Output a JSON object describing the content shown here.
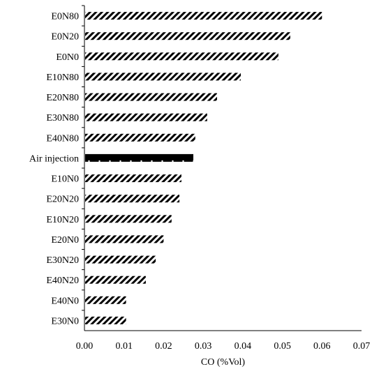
{
  "chart_data": {
    "type": "bar",
    "orientation": "horizontal",
    "title": "",
    "xlabel": "CO (%Vol)",
    "ylabel": "",
    "xlim": [
      0,
      0.07
    ],
    "xticks": [
      "0.00",
      "0.01",
      "0.02",
      "0.03",
      "0.04",
      "0.05",
      "0.06",
      "0.07"
    ],
    "grid": false,
    "categories": [
      "E0N80",
      "E0N20",
      "E0N0",
      "E10N80",
      "E20N80",
      "E30N80",
      "E40N80",
      "Air injection",
      "E10N0",
      "E20N20",
      "E10N20",
      "E20N0",
      "E30N20",
      "E40N20",
      "E40N0",
      "E30N0"
    ],
    "values": [
      0.06,
      0.052,
      0.049,
      0.0395,
      0.0335,
      0.031,
      0.028,
      0.0275,
      0.0245,
      0.024,
      0.022,
      0.02,
      0.018,
      0.0155,
      0.0105,
      0.0105
    ],
    "highlight_category": "Air injection",
    "colors": {
      "bar_pattern": "#000000",
      "highlight": "#000000",
      "axis": "#000000",
      "background": "#ffffff"
    }
  }
}
